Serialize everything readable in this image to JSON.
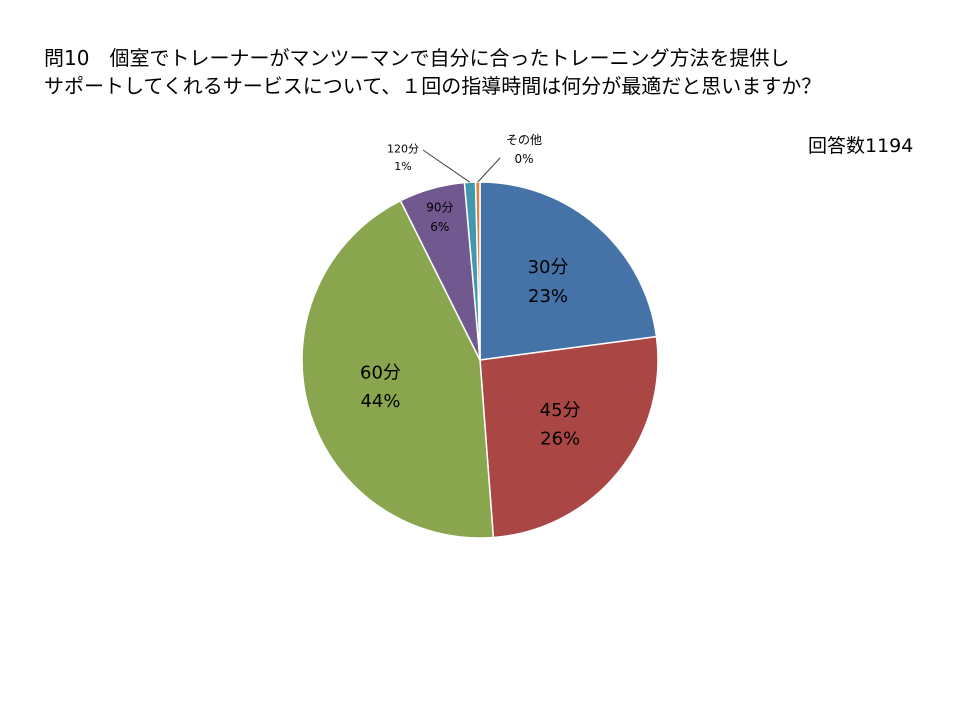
{
  "title_lines": [
    "問10　個室でトレーナーがマンツーマンで自分に合ったトレーニング方法を提供し",
    "サポートしてくれるサービスについて、１回の指導時間は何分が最適だと思いますか？"
  ],
  "respondents": "回答数1194",
  "chart_data": {
    "type": "pie",
    "start_angle_deg": 0,
    "direction": "clockwise",
    "slices": [
      {
        "name": "30分",
        "value": 23,
        "pct_label": "23%",
        "color": "#4572A7"
      },
      {
        "name": "45分",
        "value": 26,
        "pct_label": "26%",
        "color": "#AA4643"
      },
      {
        "name": "60分",
        "value": 44,
        "pct_label": "44%",
        "color": "#89A54E"
      },
      {
        "name": "90分",
        "value": 6,
        "pct_label": "6%",
        "color": "#71588F"
      },
      {
        "name": "120分",
        "value": 1,
        "pct_label": "1%",
        "color": "#4198AF"
      },
      {
        "name": "その他",
        "value": 0.4,
        "pct_label": "0%",
        "color": "#DB843D"
      }
    ]
  }
}
